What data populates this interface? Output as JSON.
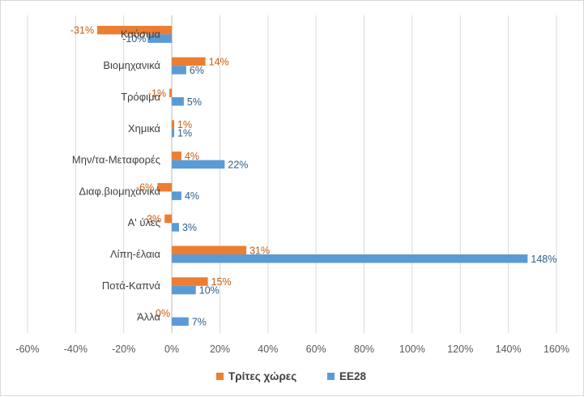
{
  "chart_data": {
    "type": "bar",
    "orientation": "horizontal",
    "title": "",
    "xlabel": "",
    "ylabel": "",
    "xlim": [
      -60,
      160
    ],
    "x_ticks": [
      -60,
      -40,
      -20,
      0,
      20,
      40,
      60,
      80,
      100,
      120,
      140,
      160
    ],
    "tick_labels": [
      "-60%",
      "-40%",
      "-20%",
      "0%",
      "20%",
      "40%",
      "60%",
      "80%",
      "100%",
      "120%",
      "140%",
      "160%"
    ],
    "grid": true,
    "legend_position": "bottom",
    "categories": [
      "Καύσιμα",
      "Βιομηχανικά",
      "Τρόφιμα",
      "Χημικά",
      "Μην/τα-Μεταφορές",
      "Διαφ.βιομηχανικά",
      "Α' ύλες",
      "Λίπη-έλαια",
      "Ποτά-Καπνά",
      "Άλλα"
    ],
    "series": [
      {
        "name": "Τρίτες χώρες",
        "color": "#ED7D31",
        "values": [
          -31,
          14,
          -1,
          1,
          4,
          -6,
          -3,
          31,
          15,
          0
        ],
        "labels": [
          "-31%",
          "14%",
          "-1%",
          "1%",
          "4%",
          "-6%",
          "-3%",
          "31%",
          "15%",
          "0%"
        ]
      },
      {
        "name": "ΕΕ28",
        "color": "#5B9BD5",
        "values": [
          -10,
          6,
          5,
          1,
          22,
          4,
          3,
          148,
          10,
          7
        ],
        "labels": [
          "-10%",
          "6%",
          "5%",
          "1%",
          "22%",
          "4%",
          "3%",
          "148%",
          "10%",
          "7%"
        ]
      }
    ]
  }
}
